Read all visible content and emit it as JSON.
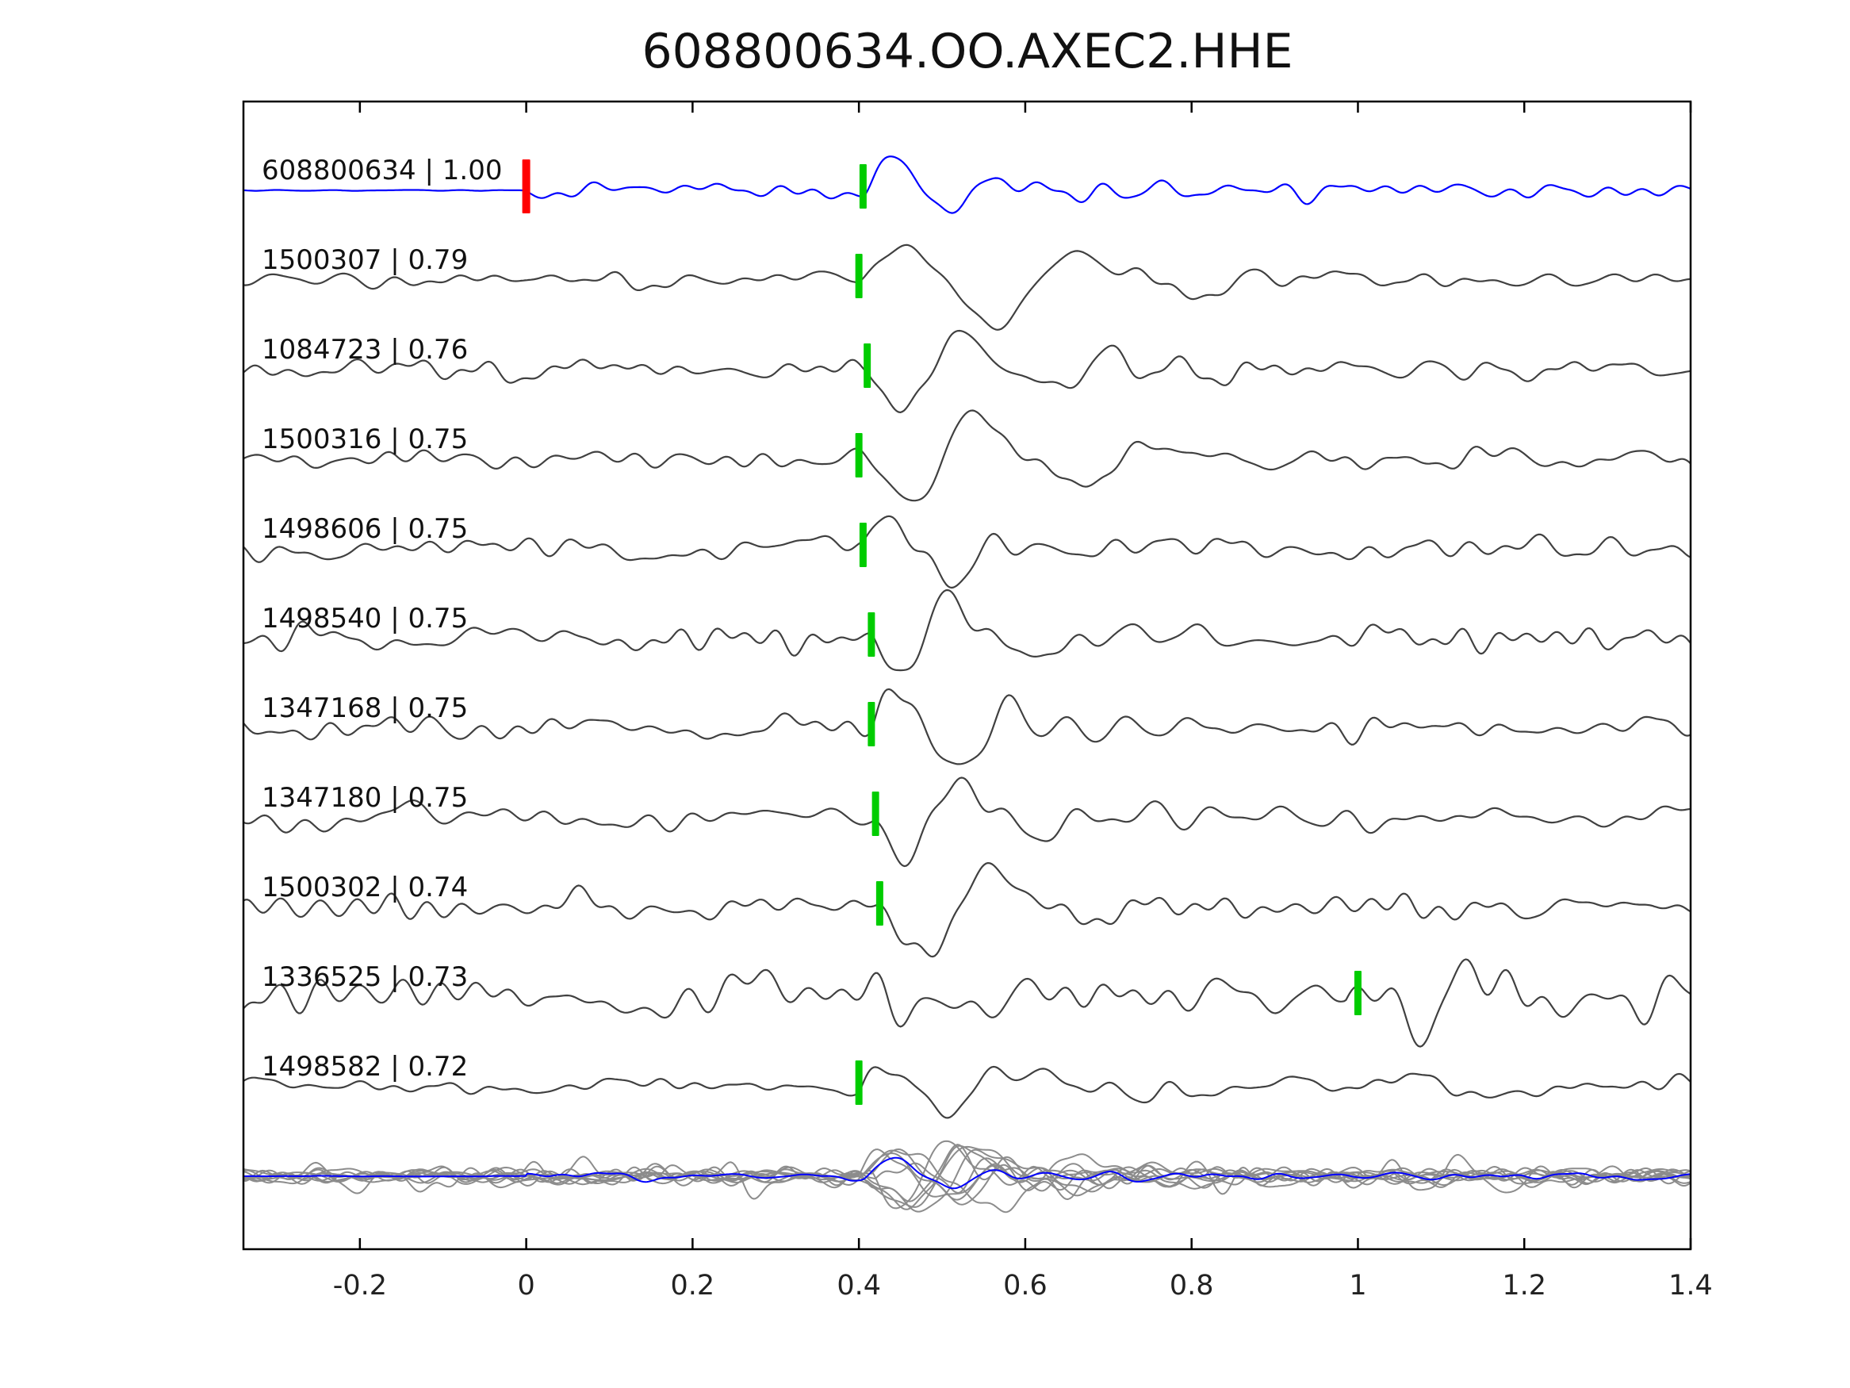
{
  "chart_data": {
    "type": "line",
    "title": "608800634.OO.AXEC2.HHE",
    "xlabel": "",
    "ylabel": "",
    "grid": false,
    "legend": "none",
    "xlim": [
      -0.34,
      1.4
    ],
    "xticks": [
      {
        "v": -0.2,
        "label": "-0.2"
      },
      {
        "v": 0.0,
        "label": "0"
      },
      {
        "v": 0.2,
        "label": "0.2"
      },
      {
        "v": 0.4,
        "label": "0.4"
      },
      {
        "v": 0.6,
        "label": "0.6"
      },
      {
        "v": 0.8,
        "label": "0.8"
      },
      {
        "v": 1.0,
        "label": "1"
      },
      {
        "v": 1.2,
        "label": "1.2"
      },
      {
        "v": 1.4,
        "label": "1.4"
      }
    ],
    "colors": {
      "master": "#0000ff",
      "trace": "#404040",
      "stack": "#8c8c8c",
      "pick_green": "#00cc00",
      "pick_red": "#ff0000"
    },
    "stack_row": {
      "amp_scale": 0.7,
      "aligned_onset": 0.42,
      "master_amp_scale": 0.5
    },
    "traces": [
      {
        "id": "608800634",
        "cc": "1.00",
        "label": "608800634 | 1.00",
        "role": "master",
        "picks": [
          {
            "t": 0.0,
            "type": "origin",
            "color": "#ff0000"
          },
          {
            "t": 0.405,
            "type": "phase",
            "color": "#00cc00"
          }
        ],
        "synth": {
          "seed": 101,
          "noise": 7,
          "quiet_before": 0,
          "onset": 0.405,
          "amp": 50,
          "freq": 6.8,
          "rise": 0.042,
          "phase": 0.2,
          "coda": 9
        }
      },
      {
        "id": "1500307",
        "cc": "0.79",
        "label": "1500307 | 0.79",
        "role": "match",
        "picks": [
          {
            "t": 0.4,
            "type": "phase",
            "color": "#00cc00"
          }
        ],
        "synth": {
          "seed": 202,
          "noise": 6,
          "onset": 0.4,
          "amp": 60,
          "freq": 4.2,
          "rise": 0.1,
          "phase": 0.4,
          "coda": 14
        }
      },
      {
        "id": "1084723",
        "cc": "0.76",
        "label": "1084723 | 0.76",
        "role": "match",
        "picks": [
          {
            "t": 0.41,
            "type": "phase",
            "color": "#00cc00"
          }
        ],
        "synth": {
          "seed": 303,
          "noise": 8,
          "onset": 0.41,
          "amp": 55,
          "freq": 5.2,
          "rise": 0.07,
          "phase": 3.6,
          "coda": 16
        }
      },
      {
        "id": "1500316",
        "cc": "0.75",
        "label": "1500316 | 0.75",
        "role": "match",
        "picks": [
          {
            "t": 0.4,
            "type": "phase",
            "color": "#00cc00"
          }
        ],
        "synth": {
          "seed": 404,
          "noise": 7,
          "onset": 0.4,
          "amp": 58,
          "freq": 4.5,
          "rise": 0.09,
          "phase": 3.5,
          "coda": 15
        }
      },
      {
        "id": "1498606",
        "cc": "0.75",
        "label": "1498606 | 0.75",
        "role": "match",
        "picks": [
          {
            "t": 0.405,
            "type": "phase",
            "color": "#00cc00"
          }
        ],
        "synth": {
          "seed": 505,
          "noise": 8,
          "onset": 0.405,
          "amp": 48,
          "freq": 6.5,
          "rise": 0.05,
          "phase": 0.5,
          "coda": 17
        }
      },
      {
        "id": "1498540",
        "cc": "0.75",
        "label": "1498540 | 0.75",
        "role": "match",
        "picks": [
          {
            "t": 0.415,
            "type": "phase",
            "color": "#00cc00"
          }
        ],
        "synth": {
          "seed": 606,
          "noise": 10,
          "onset": 0.415,
          "amp": 50,
          "freq": 6.2,
          "rise": 0.055,
          "phase": 3.8,
          "coda": 17
        }
      },
      {
        "id": "1347168",
        "cc": "0.75",
        "label": "1347168 | 0.75",
        "role": "match",
        "picks": [
          {
            "t": 0.415,
            "type": "phase",
            "color": "#00cc00"
          }
        ],
        "synth": {
          "seed": 707,
          "noise": 9,
          "onset": 0.415,
          "amp": 52,
          "freq": 6.2,
          "rise": 0.055,
          "phase": 0.6,
          "coda": 17
        }
      },
      {
        "id": "1347180",
        "cc": "0.75",
        "label": "1347180 | 0.75",
        "role": "match",
        "picks": [
          {
            "t": 0.42,
            "type": "phase",
            "color": "#00cc00"
          }
        ],
        "synth": {
          "seed": 808,
          "noise": 10,
          "onset": 0.42,
          "amp": 52,
          "freq": 6.0,
          "rise": 0.055,
          "phase": 3.7,
          "coda": 17
        }
      },
      {
        "id": "1500302",
        "cc": "0.74",
        "label": "1500302 | 0.74",
        "role": "match",
        "picks": [
          {
            "t": 0.425,
            "type": "phase",
            "color": "#00cc00"
          }
        ],
        "synth": {
          "seed": 909,
          "noise": 9,
          "onset": 0.425,
          "amp": 56,
          "freq": 4.8,
          "rise": 0.08,
          "phase": 3.4,
          "coda": 15
        }
      },
      {
        "id": "1336525",
        "cc": "0.73",
        "label": "1336525 | 0.73",
        "role": "match",
        "picks": [
          {
            "t": 1.0,
            "type": "phase",
            "color": "#00cc00"
          }
        ],
        "synth": {
          "seed": 1010,
          "noise": 19,
          "onset": 0.985,
          "amp": 38,
          "freq": 7.5,
          "rise": 0.05,
          "phase": 0.8,
          "coda": 20
        }
      },
      {
        "id": "1498582",
        "cc": "0.72",
        "label": "1498582 | 0.72",
        "role": "match",
        "picks": [
          {
            "t": 0.4,
            "type": "phase",
            "color": "#00cc00"
          }
        ],
        "synth": {
          "seed": 1111,
          "noise": 7,
          "onset": 0.4,
          "amp": 48,
          "freq": 6.3,
          "rise": 0.05,
          "phase": 0.7,
          "coda": 15
        }
      }
    ]
  }
}
